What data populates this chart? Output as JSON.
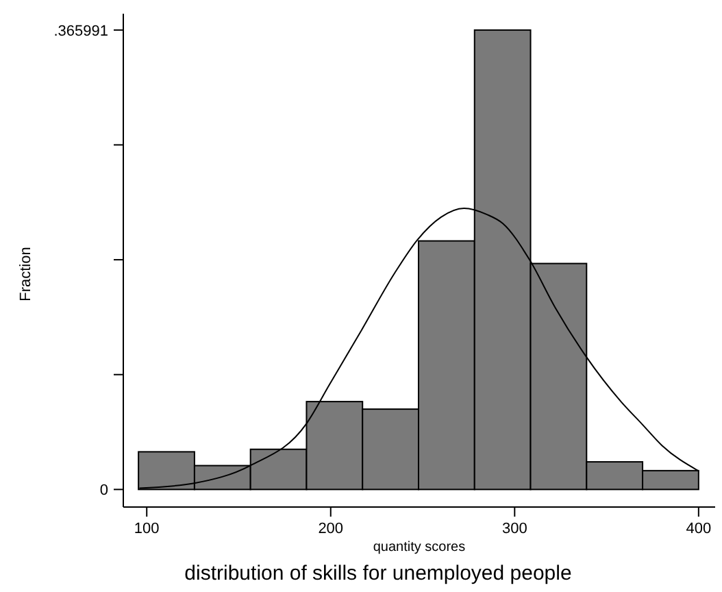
{
  "chart_data": {
    "type": "histogram",
    "title": "distribution of skills for unemployed people",
    "xlabel": "quantity scores",
    "ylabel": "Fraction",
    "xlim": [
      88,
      409
    ],
    "xticks": [
      100,
      200,
      300,
      400
    ],
    "ylim": [
      -0.014,
      0.379
    ],
    "yticks": [
      0,
      {
        "value": 0.0915,
        "label": null
      },
      {
        "value": 0.183,
        "label": null
      },
      {
        "value": 0.2745,
        "label": null
      },
      {
        "value": 0.365991,
        "label": ".365991"
      }
    ],
    "grid": false,
    "series": [
      {
        "color": "#7a7a7a",
        "bins": [
          95.5,
          125.95,
          156.4,
          186.85,
          217.3,
          247.75,
          278.2,
          308.65,
          339.1,
          369.55,
          400
        ],
        "values": [
          0.03,
          0.019,
          0.032,
          0.07,
          0.064,
          0.198,
          0.365991,
          0.18,
          0.022,
          0.015
        ]
      },
      {
        "type": "line",
        "color": "#000000",
        "x": [
          96,
          125.8,
          156.2,
          186.6,
          199.5,
          216.8,
          234.6,
          247.2,
          260,
          272.5,
          285,
          293.5,
          308.1,
          322,
          338.8,
          357.8,
          369.3,
          380.1,
          399.7
        ],
        "values": [
          0.001,
          0.005,
          0.019,
          0.052,
          0.084,
          0.127,
          0.172,
          0.199,
          0.217,
          0.224,
          0.219,
          0.212,
          0.183,
          0.145,
          0.106,
          0.07,
          0.052,
          0.035,
          0.015
        ]
      }
    ]
  }
}
